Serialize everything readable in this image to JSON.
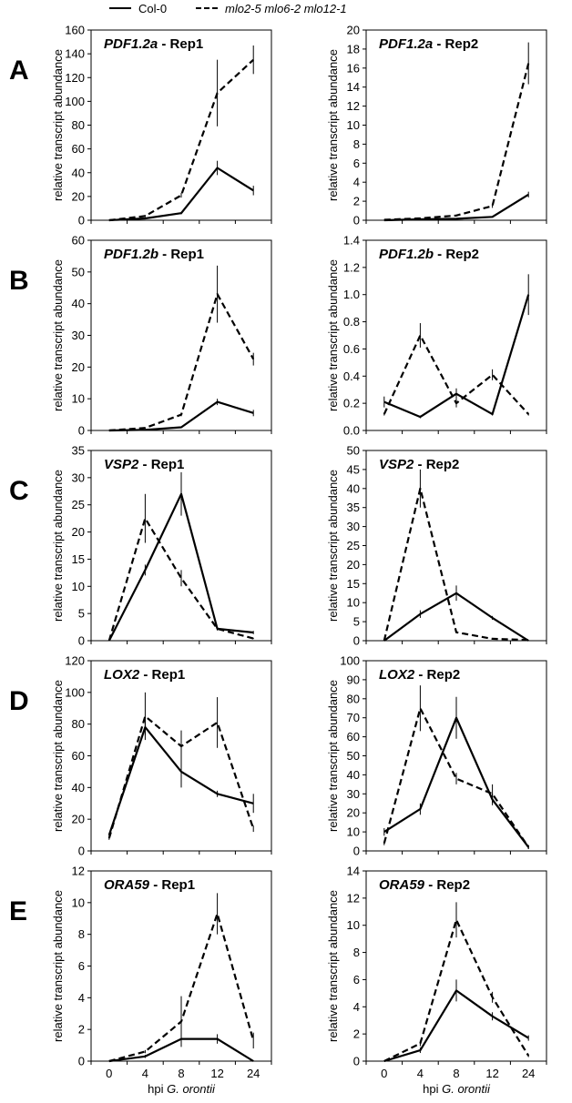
{
  "legend": [
    {
      "text": "Col-0",
      "style": "solid"
    },
    {
      "text": "mlo2-5 mlo6-2 mlo12-1",
      "style": "dashed"
    }
  ],
  "panel_letters": [
    "A",
    "B",
    "C",
    "D",
    "E"
  ],
  "ylabel": "relative transcript abundance",
  "xlabel": {
    "prefix": "hpi ",
    "italic": "G. orontii"
  },
  "chart_data": [
    {
      "type": "line",
      "panel": "A",
      "gene": "PDF1.2a",
      "rep": " - Rep1",
      "x": [
        0,
        4,
        8,
        12,
        24
      ],
      "ylim": [
        0,
        160
      ],
      "yticks": [
        0,
        20,
        40,
        60,
        80,
        100,
        120,
        140,
        160
      ],
      "series": [
        {
          "name": "Col-0",
          "style": "solid",
          "values": [
            0,
            1.5,
            6,
            44,
            25
          ],
          "errors": [
            0,
            0.5,
            1,
            6,
            4
          ]
        },
        {
          "name": "mlo2-5 mlo6-2 mlo12-1",
          "style": "dashed",
          "values": [
            0,
            3.5,
            21,
            107,
            135
          ],
          "errors": [
            0,
            1,
            2,
            28,
            12
          ]
        }
      ]
    },
    {
      "type": "line",
      "panel": "A",
      "gene": "PDF1.2a",
      "rep": " - Rep2",
      "x": [
        0,
        4,
        8,
        12,
        24
      ],
      "ylim": [
        0,
        20
      ],
      "yticks": [
        0,
        2,
        4,
        6,
        8,
        10,
        12,
        14,
        16,
        18,
        20
      ],
      "series": [
        {
          "name": "Col-0",
          "style": "solid",
          "values": [
            0,
            0.1,
            0.15,
            0.35,
            2.7
          ],
          "errors": [
            0,
            0.05,
            0.05,
            0.05,
            0.3
          ]
        },
        {
          "name": "mlo2-5 mlo6-2 mlo12-1",
          "style": "dashed",
          "values": [
            0.05,
            0.2,
            0.5,
            1.5,
            16.5
          ],
          "errors": [
            0,
            0.05,
            0.1,
            0.2,
            2.2
          ]
        }
      ]
    },
    {
      "type": "line",
      "panel": "B",
      "gene": "PDF1.2b",
      "rep": " - Rep1",
      "x": [
        0,
        4,
        8,
        12,
        24
      ],
      "ylim": [
        0,
        60
      ],
      "yticks": [
        0,
        10,
        20,
        30,
        40,
        50,
        60
      ],
      "series": [
        {
          "name": "Col-0",
          "style": "solid",
          "values": [
            0,
            0.2,
            1,
            9,
            5.5
          ],
          "errors": [
            0,
            0.1,
            0.3,
            1,
            1
          ]
        },
        {
          "name": "mlo2-5 mlo6-2 mlo12-1",
          "style": "dashed",
          "values": [
            0,
            0.8,
            5,
            43,
            22.5
          ],
          "errors": [
            0,
            0.2,
            0.5,
            9,
            2
          ]
        }
      ]
    },
    {
      "type": "line",
      "panel": "B",
      "gene": "PDF1.2b",
      "rep": " - Rep2",
      "x": [
        0,
        4,
        8,
        12,
        24
      ],
      "ylim": [
        0,
        1.4
      ],
      "yticks": [
        0.0,
        0.2,
        0.4,
        0.6,
        0.8,
        1.0,
        1.2,
        1.4
      ],
      "ytick_labels": [
        "0.0",
        "0.2",
        "0.4",
        "0.6",
        "0.8",
        "1.0",
        "1.2",
        "1.4"
      ],
      "series": [
        {
          "name": "Col-0",
          "style": "solid",
          "values": [
            0.21,
            0.1,
            0.27,
            0.12,
            1.0
          ],
          "errors": [
            0.04,
            0.01,
            0.04,
            0.01,
            0.15
          ]
        },
        {
          "name": "mlo2-5 mlo6-2 mlo12-1",
          "style": "dashed",
          "values": [
            0.12,
            0.7,
            0.2,
            0.41,
            0.12
          ],
          "errors": [
            0.01,
            0.09,
            0.03,
            0.04,
            0.01
          ]
        }
      ]
    },
    {
      "type": "line",
      "panel": "C",
      "gene": "VSP2",
      "rep": " - Rep1",
      "x": [
        0,
        4,
        8,
        12,
        24
      ],
      "ylim": [
        0,
        35
      ],
      "yticks": [
        0,
        5,
        10,
        15,
        20,
        25,
        30,
        35
      ],
      "series": [
        {
          "name": "Col-0",
          "style": "solid",
          "values": [
            0,
            13,
            27,
            2.2,
            1.5
          ],
          "errors": [
            0,
            1,
            4,
            0.3,
            0.3
          ]
        },
        {
          "name": "mlo2-5 mlo6-2 mlo12-1",
          "style": "dashed",
          "values": [
            0,
            22.5,
            11.5,
            2.2,
            0.4
          ],
          "errors": [
            0,
            4.5,
            1.5,
            0.3,
            0.1
          ]
        }
      ]
    },
    {
      "type": "line",
      "panel": "C",
      "gene": "VSP2",
      "rep": " - Rep2",
      "x": [
        0,
        4,
        8,
        12,
        24
      ],
      "ylim": [
        0,
        50
      ],
      "yticks": [
        0,
        5,
        10,
        15,
        20,
        25,
        30,
        35,
        40,
        45,
        50
      ],
      "series": [
        {
          "name": "Col-0",
          "style": "solid",
          "values": [
            0,
            7,
            12.5,
            6,
            0
          ],
          "errors": [
            0,
            1,
            2,
            0.5,
            0
          ]
        },
        {
          "name": "mlo2-5 mlo6-2 mlo12-1",
          "style": "dashed",
          "values": [
            0,
            40,
            2.2,
            0.5,
            0.2
          ],
          "errors": [
            0,
            5,
            0.2,
            0.1,
            0
          ]
        }
      ]
    },
    {
      "type": "line",
      "panel": "D",
      "gene": "LOX2",
      "rep": " - Rep1",
      "x": [
        0,
        4,
        8,
        12,
        24
      ],
      "ylim": [
        0,
        120
      ],
      "yticks": [
        0,
        20,
        40,
        60,
        80,
        100,
        120
      ],
      "series": [
        {
          "name": "Col-0",
          "style": "solid",
          "values": [
            10,
            78,
            50,
            36,
            30
          ],
          "errors": [
            1,
            5,
            10,
            2,
            6
          ]
        },
        {
          "name": "mlo2-5 mlo6-2 mlo12-1",
          "style": "dashed",
          "values": [
            8,
            85,
            66,
            81,
            14
          ],
          "errors": [
            1,
            15,
            10,
            16,
            2
          ]
        }
      ]
    },
    {
      "type": "line",
      "panel": "D",
      "gene": "LOX2",
      "rep": " - Rep2",
      "x": [
        0,
        4,
        8,
        12,
        24
      ],
      "ylim": [
        0,
        100
      ],
      "yticks": [
        0,
        10,
        20,
        30,
        40,
        50,
        60,
        70,
        80,
        90,
        100
      ],
      "series": [
        {
          "name": "Col-0",
          "style": "solid",
          "values": [
            10,
            22,
            70,
            27,
            2
          ],
          "errors": [
            2,
            3,
            11,
            3,
            1
          ]
        },
        {
          "name": "mlo2-5 mlo6-2 mlo12-1",
          "style": "dashed",
          "values": [
            4,
            75,
            38,
            30,
            2
          ],
          "errors": [
            1,
            12,
            3,
            5,
            1
          ]
        }
      ]
    },
    {
      "type": "line",
      "panel": "E",
      "gene": "ORA59",
      "rep": " - Rep1",
      "x": [
        0,
        4,
        8,
        12,
        24
      ],
      "ylim": [
        0,
        12
      ],
      "yticks": [
        0,
        2,
        4,
        6,
        8,
        10,
        12
      ],
      "series": [
        {
          "name": "Col-0",
          "style": "solid",
          "values": [
            0,
            0.3,
            1.4,
            1.4,
            0
          ],
          "errors": [
            0,
            0.1,
            0.2,
            0.3,
            0
          ]
        },
        {
          "name": "mlo2-5 mlo6-2 mlo12-1",
          "style": "dashed",
          "values": [
            0,
            0.6,
            2.5,
            9.3,
            1.3
          ],
          "errors": [
            0,
            0.1,
            1.6,
            1.3,
            0.5
          ]
        }
      ]
    },
    {
      "type": "line",
      "panel": "E",
      "gene": "ORA59",
      "rep": " - Rep2",
      "x": [
        0,
        4,
        8,
        12,
        24
      ],
      "ylim": [
        0,
        14
      ],
      "yticks": [
        0,
        2,
        4,
        6,
        8,
        10,
        12,
        14
      ],
      "series": [
        {
          "name": "Col-0",
          "style": "solid",
          "values": [
            0,
            0.8,
            5.2,
            3.3,
            1.7
          ],
          "errors": [
            0,
            0.2,
            0.8,
            0.3,
            0.2
          ]
        },
        {
          "name": "mlo2-5 mlo6-2 mlo12-1",
          "style": "dashed",
          "values": [
            0,
            1.3,
            10.4,
            4.7,
            0.4
          ],
          "errors": [
            0,
            0.2,
            1.3,
            0.4,
            0.1
          ]
        }
      ]
    }
  ]
}
